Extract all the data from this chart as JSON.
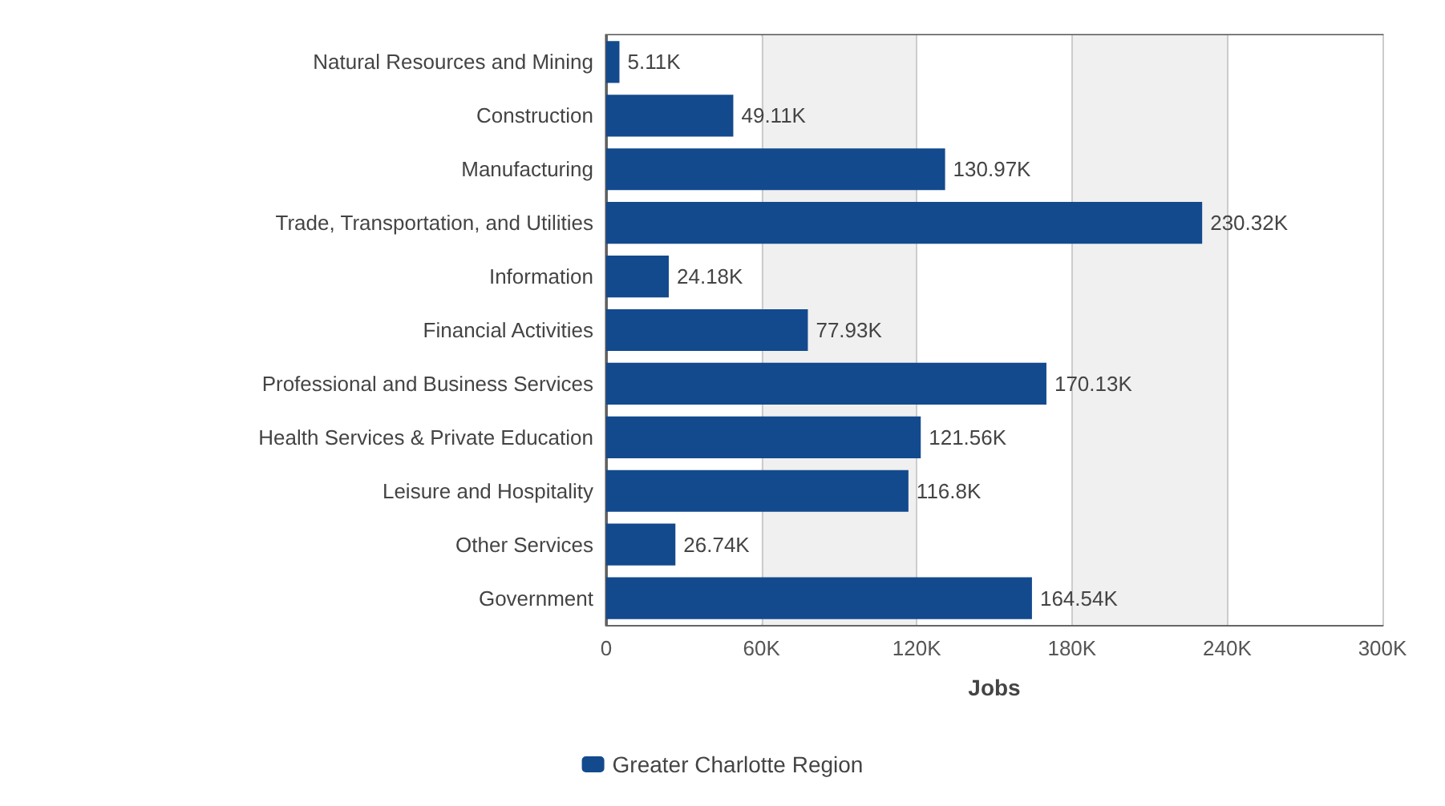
{
  "chart_data": {
    "type": "bar",
    "orientation": "horizontal",
    "xlabel": "Jobs",
    "categories": [
      "Natural Resources and Mining",
      "Construction",
      "Manufacturing",
      "Trade, Transportation, and Utilities",
      "Information",
      "Financial Activities",
      "Professional and Business Services",
      "Health Services & Private Education",
      "Leisure and Hospitality",
      "Other Services",
      "Government"
    ],
    "series": [
      {
        "name": "Greater Charlotte Region",
        "color": "#134a8e",
        "values": [
          5110,
          49110,
          130970,
          230320,
          24180,
          77930,
          170130,
          121560,
          116800,
          26740,
          164540
        ],
        "value_labels": [
          "5.11K",
          "49.11K",
          "130.97K",
          "230.32K",
          "24.18K",
          "77.93K",
          "170.13K",
          "121.56K",
          "116.8K",
          "26.74K",
          "164.54K"
        ]
      }
    ],
    "xlim": [
      0,
      300000
    ],
    "xticks": [
      0,
      {
        "value": 60000,
        "label": "60K"
      },
      {
        "value": 120000,
        "label": "120K"
      },
      {
        "value": 180000,
        "label": "180K"
      },
      {
        "value": 240000,
        "label": "240K"
      },
      {
        "value": 300000,
        "label": "300K"
      }
    ],
    "grid": "x",
    "legend": "bottom"
  }
}
